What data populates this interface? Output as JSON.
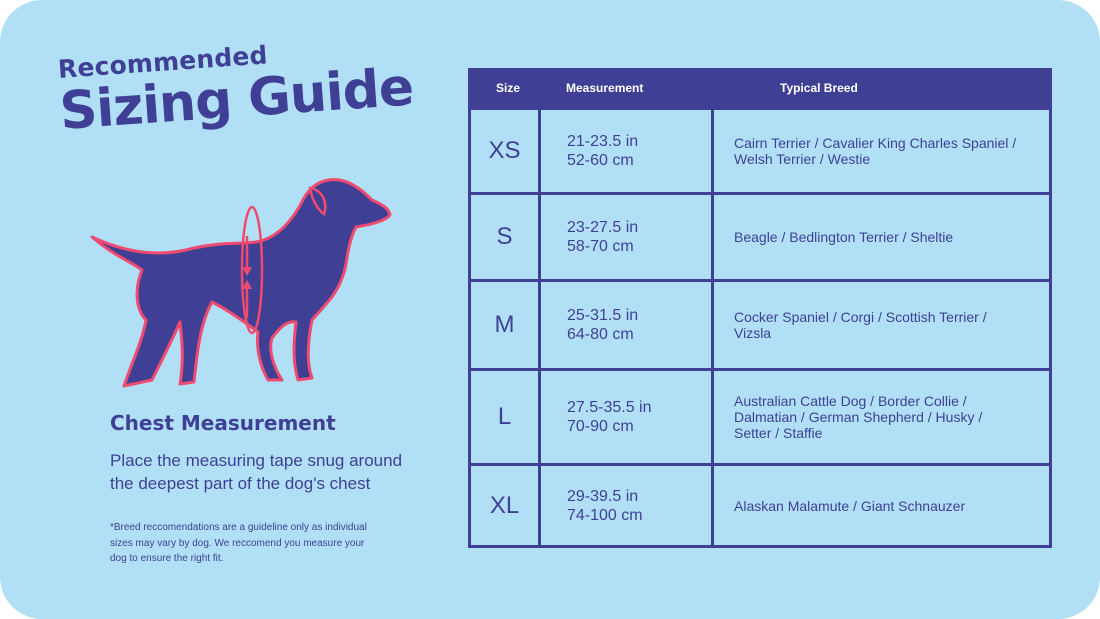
{
  "colors": {
    "background": "#b1e0f6",
    "primary": "#3f4095",
    "accent": "#ef4a6f",
    "header_text": "#ffffff"
  },
  "title": {
    "line1": "Recommended",
    "line2": "Sizing Guide"
  },
  "illustration": {
    "icon": "dog-chest-measurement-icon"
  },
  "chest": {
    "heading": "Chest Measurement",
    "description": "Place the measuring tape snug around the deepest part of the dog's chest"
  },
  "footnote": "*Breed reccomendations are a guideline only as individual sizes may vary by dog. We reccomend you measure your dog to ensure the right fit.",
  "table": {
    "headers": {
      "size": "Size",
      "measurement": "Measurement",
      "breed": "Typical Breed"
    },
    "rows": [
      {
        "size": "XS",
        "in": "21-23.5 in",
        "cm": "52-60 cm",
        "breed": "Cairn Terrier / Cavalier King Charles Spaniel / Welsh Terrier / Westie"
      },
      {
        "size": "S",
        "in": "23-27.5 in",
        "cm": "58-70 cm",
        "breed": "Beagle / Bedlington Terrier / Sheltie"
      },
      {
        "size": "M",
        "in": "25-31.5 in",
        "cm": "64-80 cm",
        "breed": "Cocker Spaniel / Corgi / Scottish Terrier / Vizsla"
      },
      {
        "size": "L",
        "in": "27.5-35.5 in",
        "cm": "70-90 cm",
        "breed": "Australian Cattle Dog / Border Collie / Dalmatian / German Shepherd / Husky / Setter / Staffie"
      },
      {
        "size": "XL",
        "in": "29-39.5 in",
        "cm": "74-100 cm",
        "breed": "Alaskan Malamute / Giant Schnauzer"
      }
    ]
  }
}
